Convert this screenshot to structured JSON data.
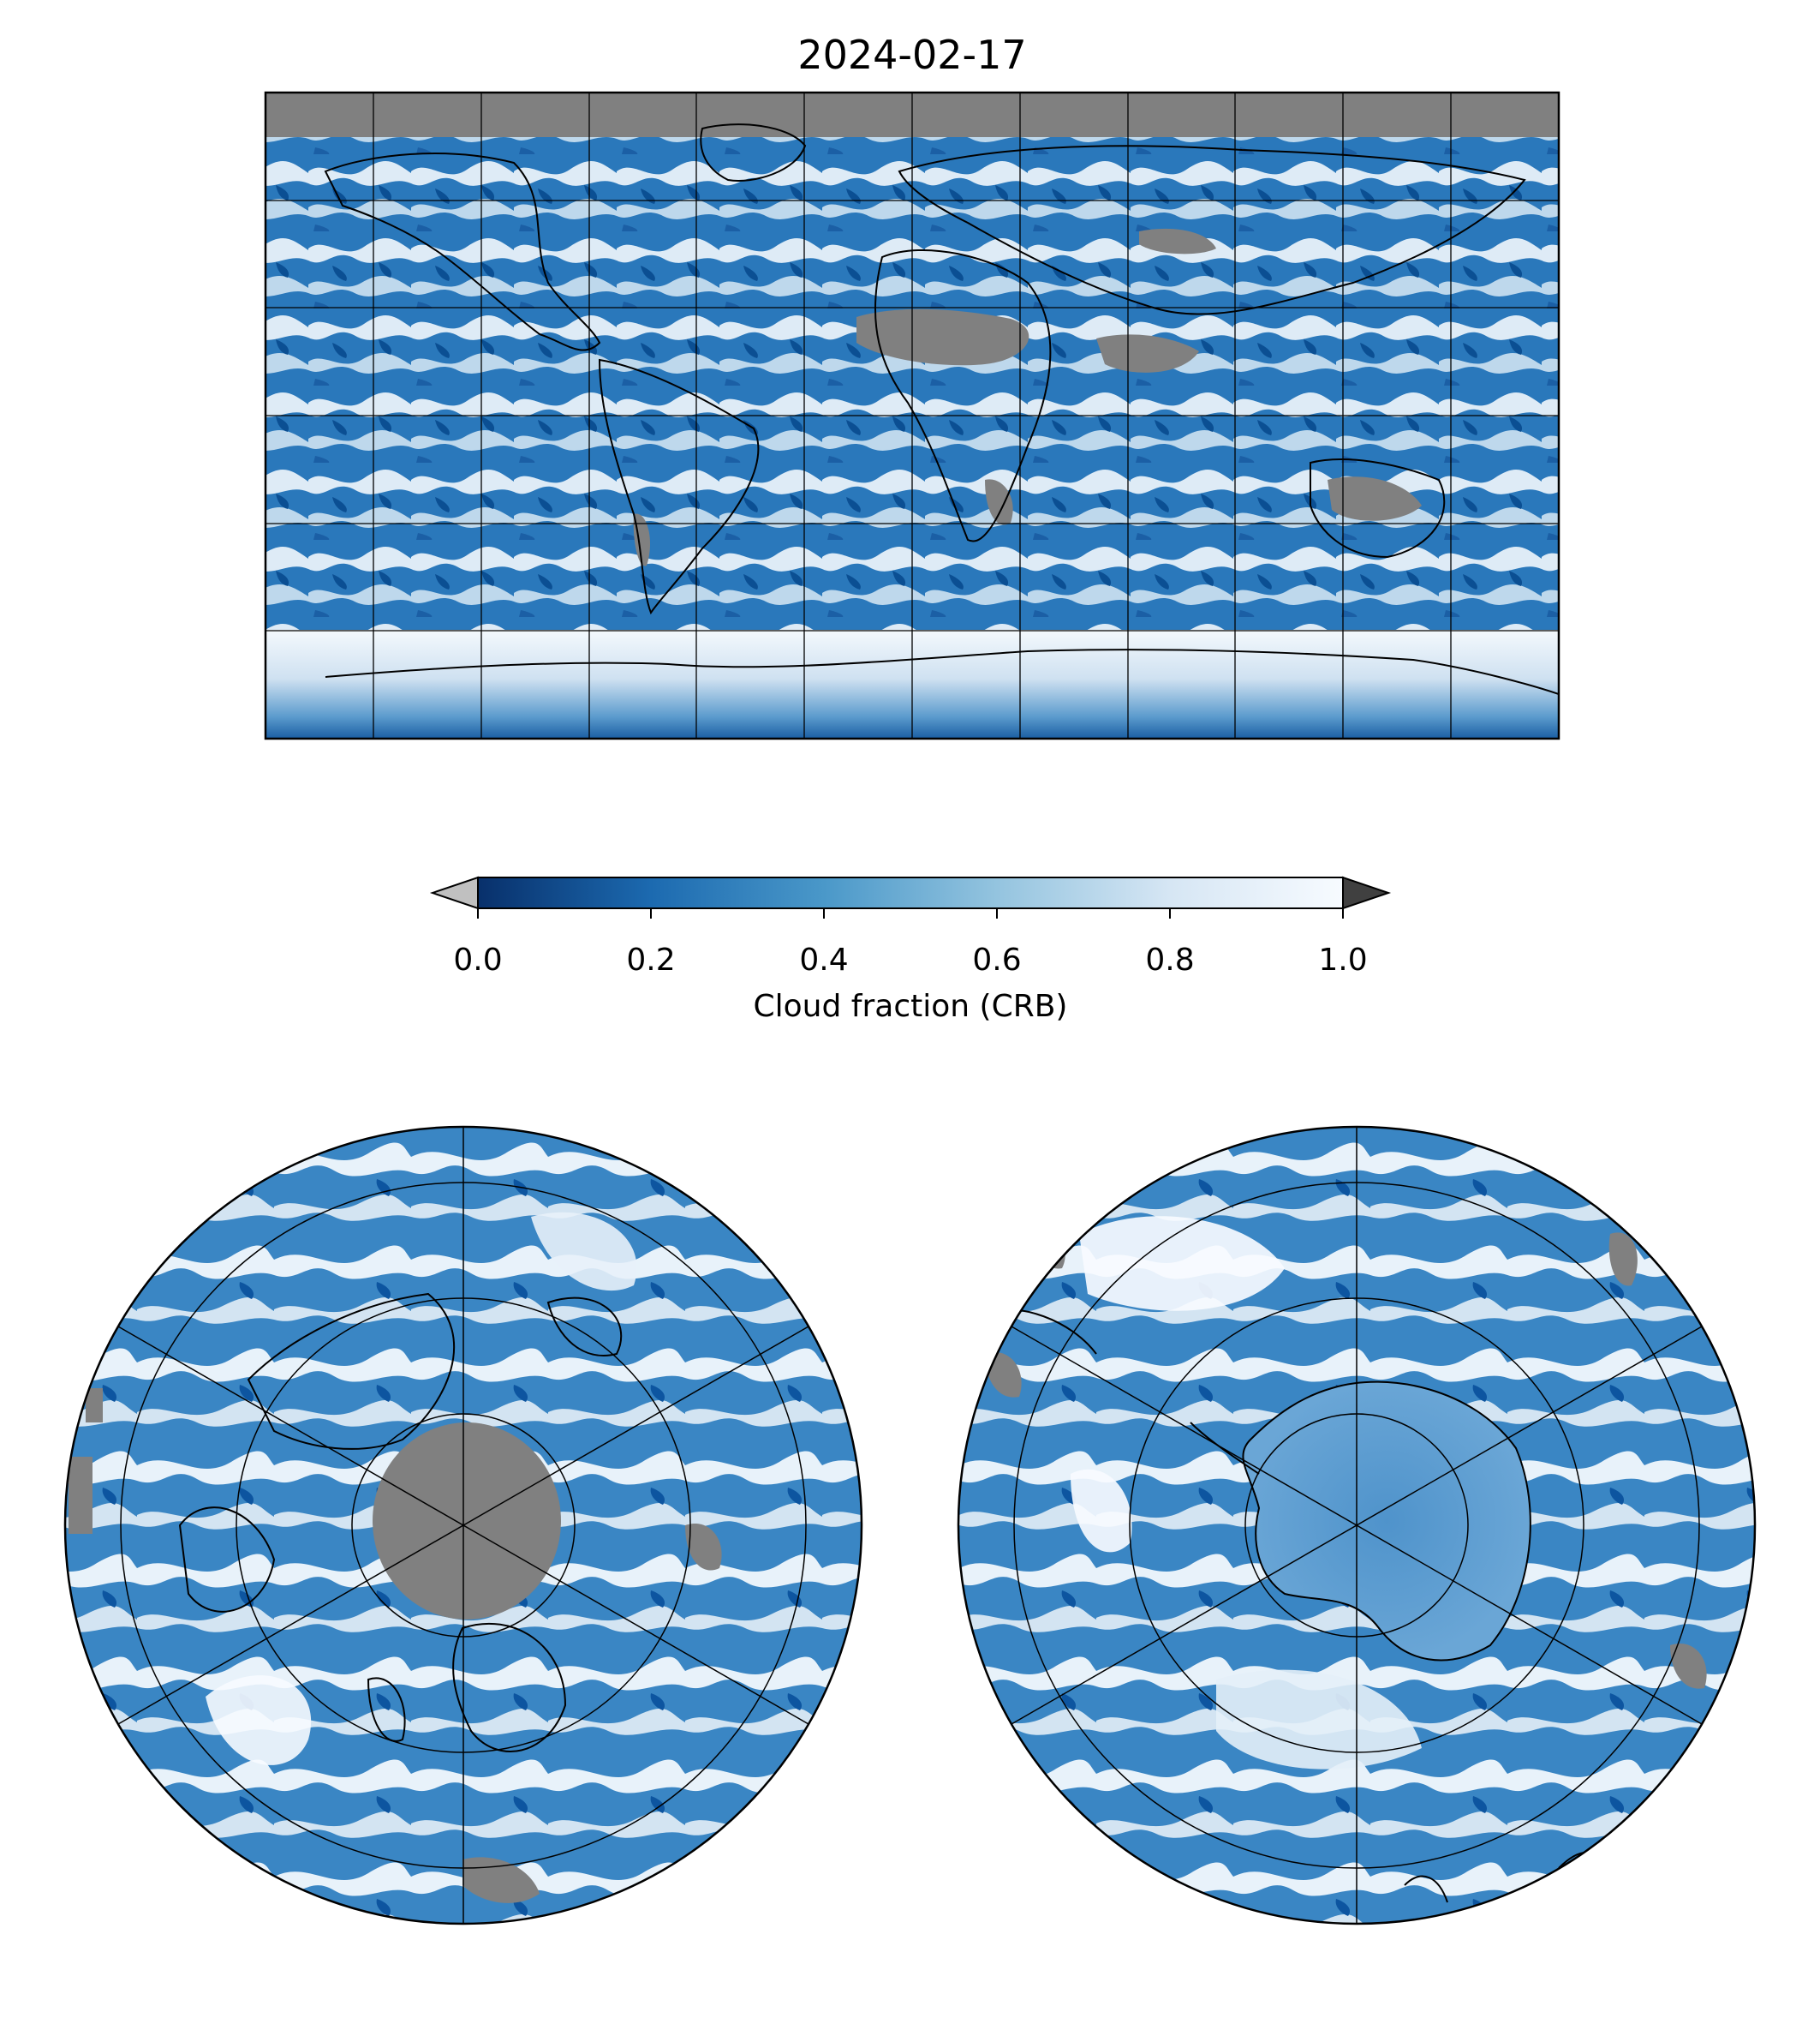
{
  "figure": {
    "title": "2024-02-17"
  },
  "colorbar": {
    "label": "Cloud fraction (CRB)",
    "range": [
      0.0,
      1.0
    ],
    "ticks": [
      "0.0",
      "0.2",
      "0.4",
      "0.6",
      "0.8",
      "1.0"
    ],
    "colormap": "Blues_r",
    "stops": [
      "#08306b",
      "#1c6ab0",
      "#4a98c9",
      "#94c4df",
      "#d6e6f4",
      "#f7fbff"
    ],
    "under_color": "#c0c0c0",
    "over_color": "#404040",
    "no_data_color": "#808080"
  },
  "maps": [
    {
      "name": "global",
      "projection": "equirectangular",
      "lon_range": [
        -180,
        180
      ],
      "lat_range": [
        -90,
        90
      ],
      "gridline_spacing_deg": 30
    },
    {
      "name": "north-polar",
      "projection": "north-polar-stereographic",
      "lat_limit": 30,
      "gridlines": "circles and 60-degree meridians"
    },
    {
      "name": "south-polar",
      "projection": "south-polar-stereographic",
      "lat_limit": -30,
      "gridlines": "circles and 60-degree meridians"
    }
  ]
}
